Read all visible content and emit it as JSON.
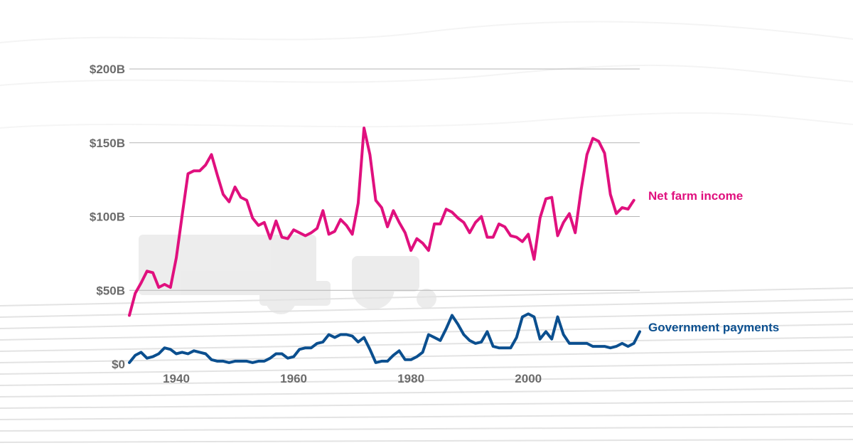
{
  "chart_data": {
    "type": "line",
    "title": "",
    "xlabel": "",
    "ylabel": "",
    "xlim": [
      1932,
      2019
    ],
    "ylim": [
      0,
      200
    ],
    "y_unit": "billion USD",
    "x_ticks": [
      1940,
      1960,
      1980,
      2000
    ],
    "x_tick_labels": [
      "1940",
      "1960",
      "1980",
      "2000"
    ],
    "y_ticks": [
      0,
      50,
      100,
      150,
      200
    ],
    "y_tick_labels": [
      "$0",
      "$50B",
      "$100B",
      "$150B",
      "$200B"
    ],
    "grid": "horizontal",
    "colors": {
      "net_farm_income": "#e0107e",
      "government_payments": "#0b4f8f",
      "grid": "#b5b5b5",
      "ticks": "#6b6b6b"
    },
    "series": [
      {
        "name": "Net farm income",
        "key": "net_farm_income",
        "x": [
          1932,
          1933,
          1934,
          1935,
          1936,
          1937,
          1938,
          1939,
          1940,
          1941,
          1942,
          1943,
          1944,
          1945,
          1946,
          1947,
          1948,
          1949,
          1950,
          1951,
          1952,
          1953,
          1954,
          1955,
          1956,
          1957,
          1958,
          1959,
          1960,
          1961,
          1962,
          1963,
          1964,
          1965,
          1966,
          1967,
          1968,
          1969,
          1970,
          1971,
          1972,
          1973,
          1974,
          1975,
          1976,
          1977,
          1978,
          1979,
          1980,
          1981,
          1982,
          1983,
          1984,
          1985,
          1986,
          1987,
          1988,
          1989,
          1990,
          1991,
          1992,
          1993,
          1994,
          1995,
          1996,
          1997,
          1998,
          1999,
          2000,
          2001,
          2002,
          2003,
          2004,
          2005,
          2006,
          2007,
          2008,
          2009,
          2010,
          2011,
          2012,
          2013,
          2014,
          2015,
          2016,
          2017,
          2018,
          2019
        ],
        "values": [
          33,
          48,
          55,
          63,
          62,
          52,
          54,
          52,
          72,
          101,
          129,
          131,
          131,
          135,
          142,
          128,
          115,
          110,
          120,
          113,
          111,
          99,
          94,
          96,
          85,
          97,
          86,
          85,
          91,
          89,
          87,
          89,
          92,
          104,
          88,
          90,
          98,
          94,
          88,
          109,
          160,
          142,
          111,
          106,
          93,
          104,
          96,
          89,
          77,
          85,
          82,
          77,
          95,
          95,
          105,
          103,
          99,
          96,
          89,
          96,
          100,
          86,
          86,
          95,
          93,
          87,
          86,
          83,
          88,
          71,
          99,
          112,
          113,
          87,
          96,
          102,
          89,
          118,
          142,
          153,
          151,
          143,
          115,
          102,
          106,
          105,
          111,
          null
        ]
      },
      {
        "name": "Government payments",
        "key": "government_payments",
        "x": [
          1932,
          1933,
          1934,
          1935,
          1936,
          1937,
          1938,
          1939,
          1940,
          1941,
          1942,
          1943,
          1944,
          1945,
          1946,
          1947,
          1948,
          1949,
          1950,
          1951,
          1952,
          1953,
          1954,
          1955,
          1956,
          1957,
          1958,
          1959,
          1960,
          1961,
          1962,
          1963,
          1964,
          1965,
          1966,
          1967,
          1968,
          1969,
          1970,
          1971,
          1972,
          1973,
          1974,
          1975,
          1976,
          1977,
          1978,
          1979,
          1980,
          1981,
          1982,
          1983,
          1984,
          1985,
          1986,
          1987,
          1988,
          1989,
          1990,
          1991,
          1992,
          1993,
          1994,
          1995,
          1996,
          1997,
          1998,
          1999,
          2000,
          2001,
          2002,
          2003,
          2004,
          2005,
          2006,
          2007,
          2008,
          2009,
          2010,
          2011,
          2012,
          2013,
          2014,
          2015,
          2016,
          2017,
          2018,
          2019
        ],
        "values": [
          1,
          6,
          8,
          4,
          5,
          7,
          11,
          10,
          7,
          8,
          7,
          9,
          8,
          7,
          3,
          2,
          2,
          1,
          2,
          2,
          2,
          1,
          2,
          2,
          4,
          7,
          7,
          4,
          5,
          10,
          11,
          11,
          14,
          15,
          20,
          18,
          20,
          20,
          19,
          15,
          18,
          10,
          1,
          2,
          2,
          6,
          9,
          3,
          3,
          5,
          8,
          20,
          18,
          16,
          24,
          33,
          27,
          20,
          16,
          14,
          15,
          22,
          12,
          11,
          11,
          11,
          18,
          32,
          34,
          32,
          17,
          22,
          17,
          32,
          20,
          14,
          14,
          14,
          14,
          12,
          12,
          12,
          11,
          12,
          14,
          12,
          14,
          22
        ]
      }
    ]
  },
  "labels": {
    "net_farm_income": "Net farm income",
    "government_payments": "Government payments"
  }
}
